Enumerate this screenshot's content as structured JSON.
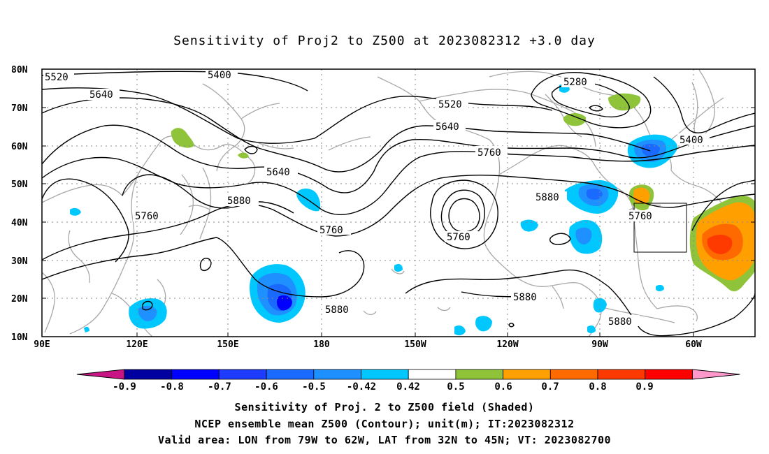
{
  "title": "Sensitivity of Proj2 to Z500 at 2023082312 +3.0 day",
  "lat_labels": [
    "80N",
    "70N",
    "60N",
    "50N",
    "40N",
    "30N",
    "20N",
    "10N"
  ],
  "lon_labels": [
    "90E",
    "120E",
    "150E",
    "180",
    "150W",
    "120W",
    "90W",
    "60W"
  ],
  "contour_labels": [
    "5520",
    "5400",
    "5640",
    "5520",
    "5280",
    "5640",
    "5400",
    "5760",
    "5640",
    "5880",
    "5760",
    "5880",
    "5760",
    "5760",
    "5760",
    "5880",
    "5880",
    "5880"
  ],
  "colorbar": {
    "labels": [
      "-0.9",
      "-0.8",
      "-0.7",
      "-0.6",
      "-0.5",
      "-0.42",
      "0.42",
      "0.5",
      "0.6",
      "0.7",
      "0.8",
      "0.9"
    ],
    "colors": [
      "#c71585",
      "#0000a0",
      "#0000ff",
      "#1e3cff",
      "#1a6aff",
      "#1e90ff",
      "#00c8ff",
      "#ffffff",
      "#8fc43a",
      "#ff9f00",
      "#ff6a00",
      "#ff3a00",
      "#ff0000",
      "#ff99cc"
    ]
  },
  "caption": {
    "line1": "Sensitivity of Proj. 2 to Z500 field (Shaded)",
    "line2": "NCEP ensemble mean Z500 (Contour); unit(m); IT:2023082312",
    "line3": "Valid area: LON from 79W to 62W, LAT from 32N to 45N; VT: 2023082700"
  }
}
